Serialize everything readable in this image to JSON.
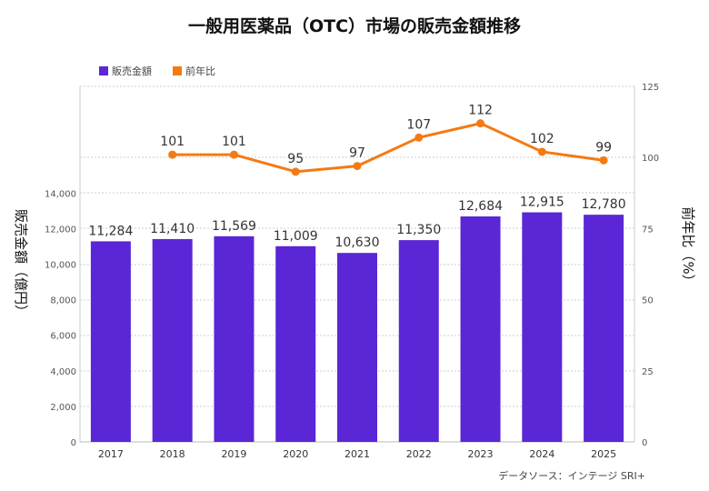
{
  "chart_data": {
    "type": "bar+line",
    "title": "一般用医薬品（OTC）市場の販売金額推移",
    "categories": [
      "2017",
      "2018",
      "2019",
      "2020",
      "2021",
      "2022",
      "2023",
      "2024",
      "2025"
    ],
    "series": [
      {
        "name": "販売金額",
        "type": "bar",
        "axis": "left",
        "color": "#5a26d6",
        "values": [
          11284,
          11410,
          11569,
          11009,
          10630,
          11350,
          12684,
          12915,
          12780
        ],
        "labels": [
          "11,284",
          "11,410",
          "11,569",
          "11,009",
          "10,630",
          "11,350",
          "12,684",
          "12,915",
          "12,780"
        ]
      },
      {
        "name": "前年比",
        "type": "line",
        "axis": "right",
        "color": "#f47a14",
        "values": [
          null,
          101,
          101,
          95,
          97,
          107,
          112,
          102,
          99
        ]
      }
    ],
    "ylabel": "販売金額（億円）",
    "y2label": "前年比（%）",
    "ylim": [
      0,
      20000
    ],
    "y2lim": [
      0,
      125
    ],
    "yticks": [
      "0",
      "2,000",
      "4,000",
      "6,000",
      "8,000",
      "10,000",
      "12,000",
      "14,000"
    ],
    "ytick_values": [
      0,
      2000,
      4000,
      6000,
      8000,
      10000,
      12000,
      14000
    ],
    "y2ticks": [
      "0",
      "25",
      "50",
      "75",
      "100",
      "125"
    ],
    "y2tick_values": [
      0,
      25,
      50,
      75,
      100,
      125
    ],
    "legend": {
      "placement": "top-left",
      "entries": [
        "販売金額",
        "前年比"
      ]
    },
    "source": "データソース：インテージ SRI+",
    "grid": true
  }
}
